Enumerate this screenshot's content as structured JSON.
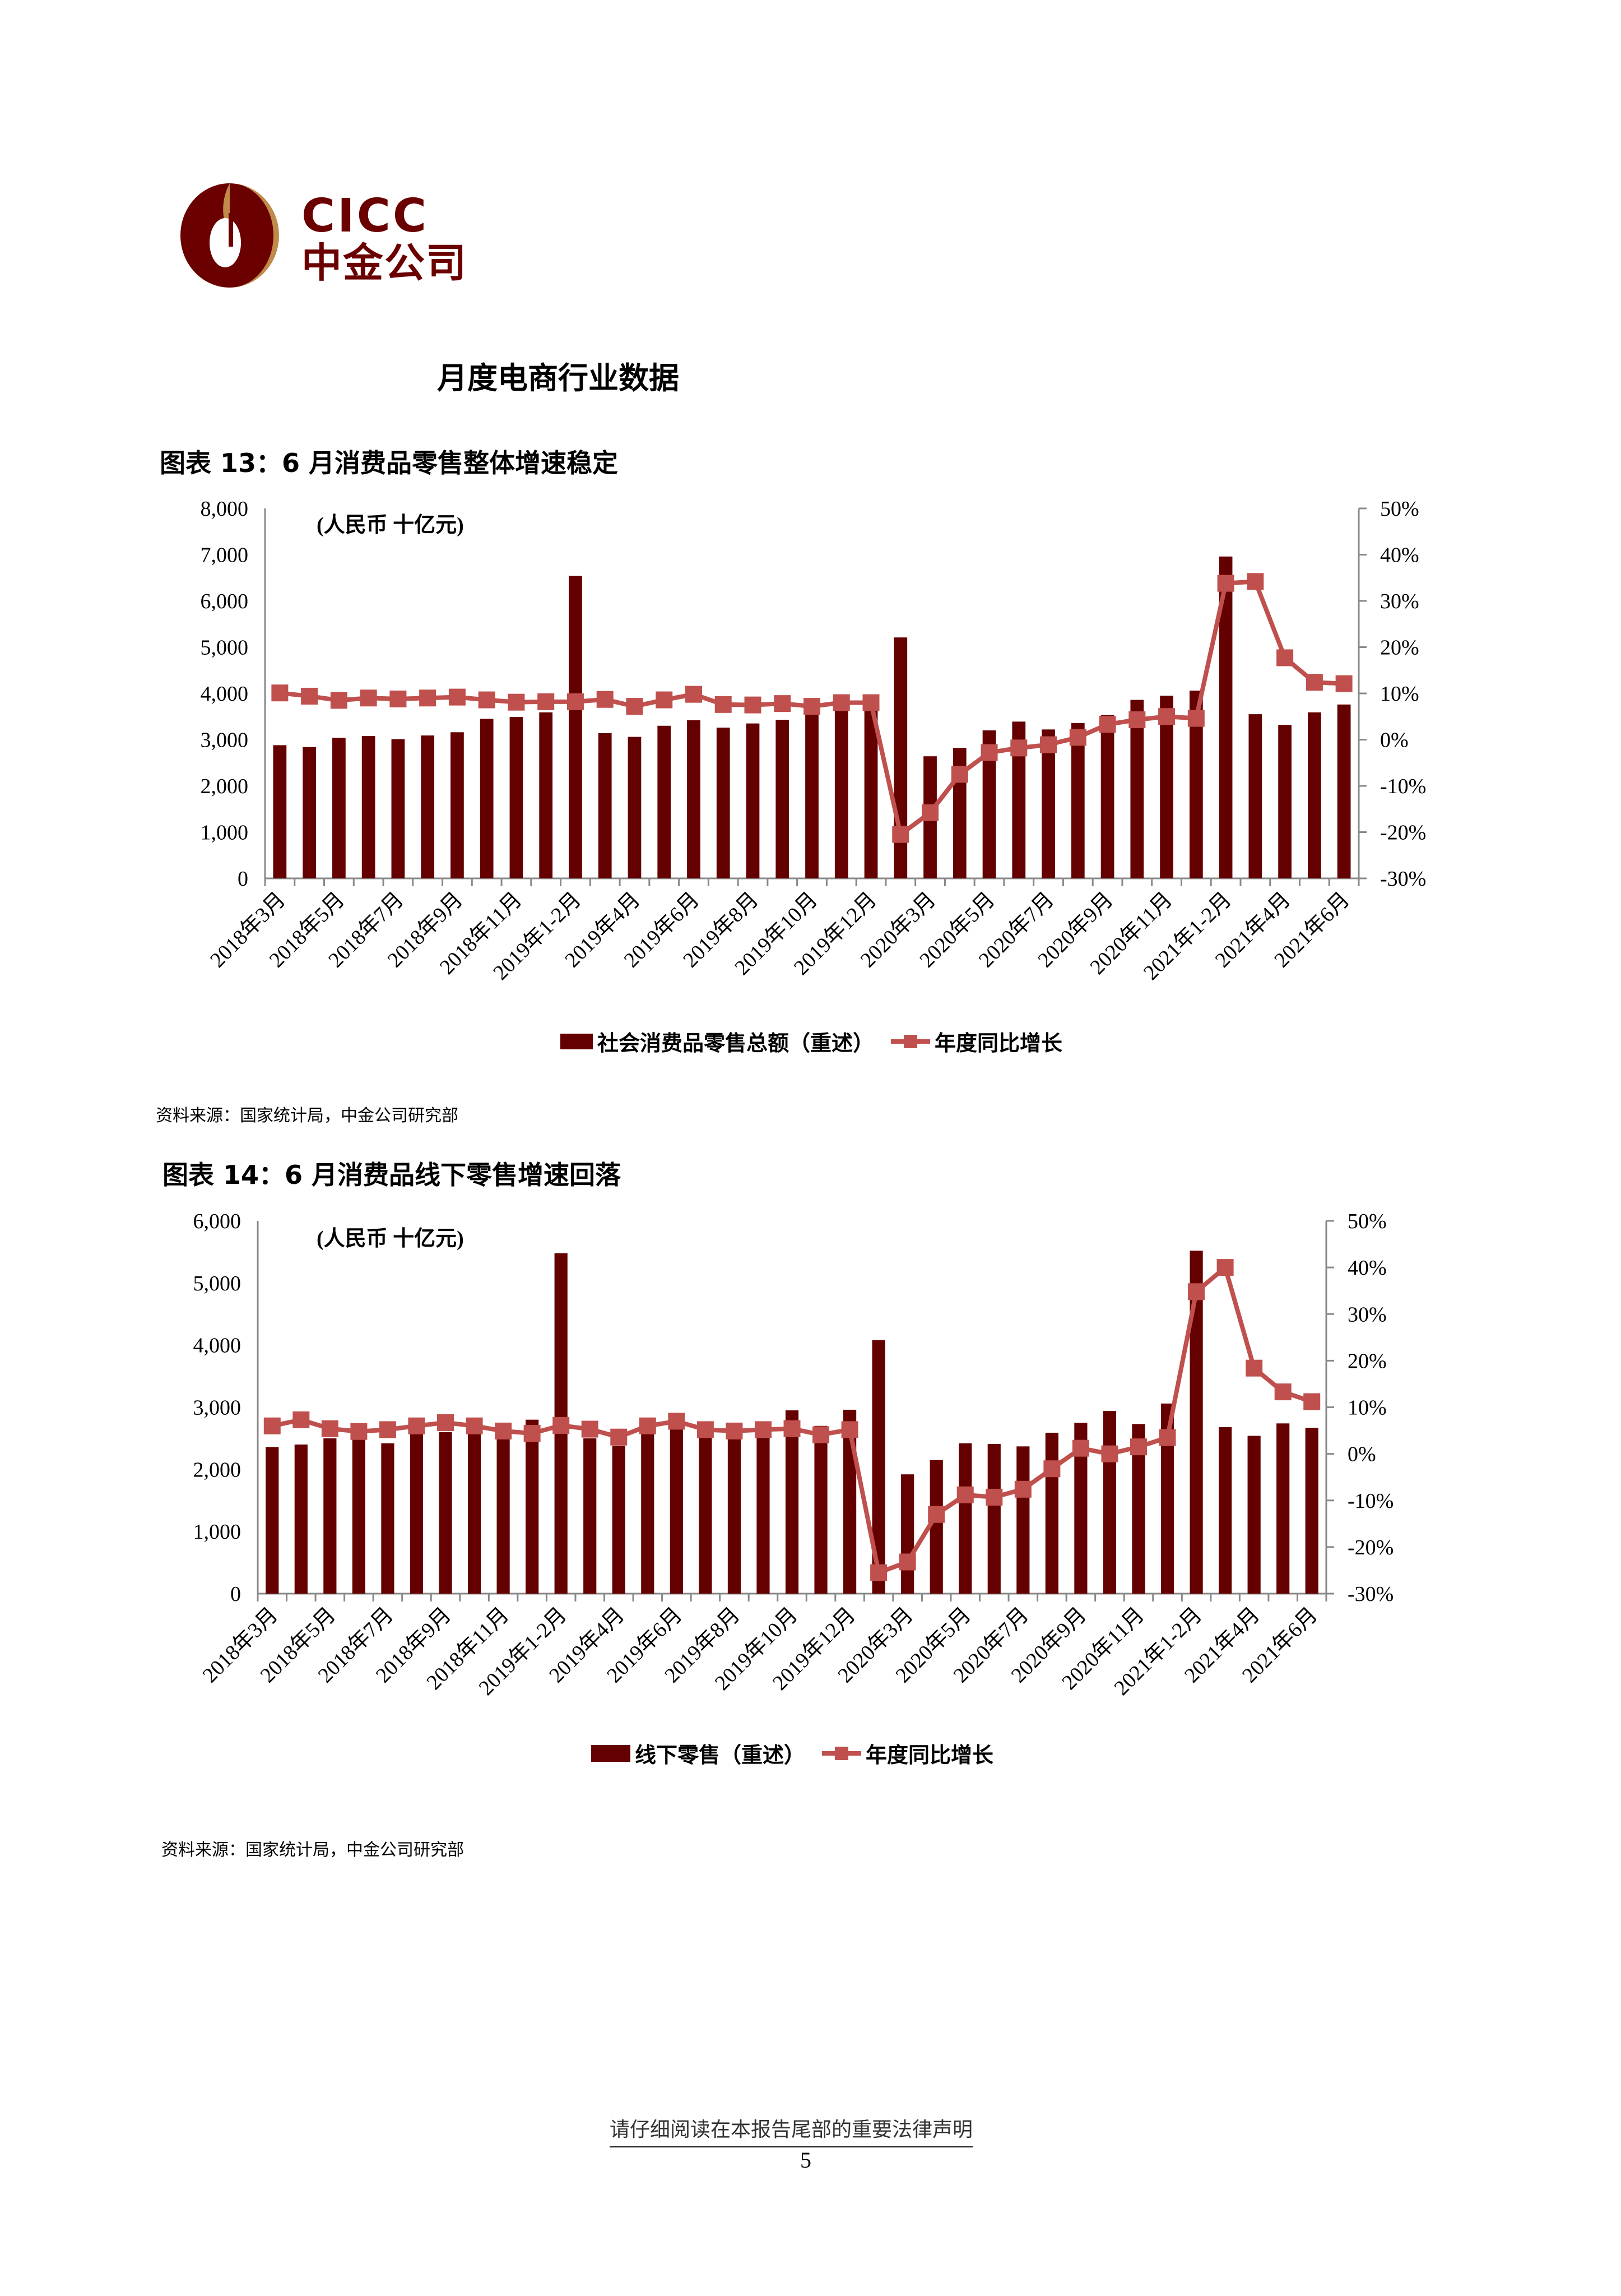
{
  "header": {
    "logo_en": "CICC",
    "logo_cn": "中金公司",
    "colors": {
      "brand_dark": "#6b0000",
      "brand_gold": "#c08a4a"
    }
  },
  "section_title": "月度电商行业数据",
  "figures": [
    {
      "title": "图表 13：6 月消费品零售整体增速稳定",
      "unit_note": "(人民币 十亿元)",
      "source": "资料来源：国家统计局，中金公司研究部",
      "legend": {
        "bar": "社会消费品零售总额（重述）",
        "line": "年度同比增长"
      }
    },
    {
      "title": "图表 14：6 月消费品线下零售增速回落",
      "unit_note": "(人民币 十亿元)",
      "source": "资料来源：国家统计局，中金公司研究部",
      "legend": {
        "bar": "线下零售（重述）",
        "line": "年度同比增长"
      }
    }
  ],
  "footer": {
    "disclaimer": "请仔细阅读在本报告尾部的重要法律声明",
    "page_number": "5"
  },
  "chart_data": [
    {
      "type": "bar+line",
      "title": "图表 13：6 月消费品零售整体增速稳定",
      "categories": [
        "2018年3月",
        "2018年4月",
        "2018年5月",
        "2018年6月",
        "2018年7月",
        "2018年8月",
        "2018年9月",
        "2018年10月",
        "2018年11月",
        "2018年12月",
        "2019年1-2月",
        "2019年3月",
        "2019年4月",
        "2019年5月",
        "2019年6月",
        "2019年7月",
        "2019年8月",
        "2019年9月",
        "2019年10月",
        "2019年11月",
        "2019年12月",
        "2020年1-2月",
        "2020年3月",
        "2020年4月",
        "2020年5月",
        "2020年6月",
        "2020年7月",
        "2020年8月",
        "2020年9月",
        "2020年10月",
        "2020年11月",
        "2020年12月",
        "2021年1-2月",
        "2021年3月",
        "2021年4月",
        "2021年5月",
        "2021年6月"
      ],
      "tick_labels": [
        "2018年3月",
        "2018年5月",
        "2018年7月",
        "2018年9月",
        "2018年11月",
        "2019年1-2月",
        "2019年4月",
        "2019年6月",
        "2019年8月",
        "2019年10月",
        "2019年12月",
        "2020年3月",
        "2020年5月",
        "2020年7月",
        "2020年9月",
        "2020年11月",
        "2021年1-2月",
        "2021年4月",
        "2021年6月"
      ],
      "series": [
        {
          "name": "社会消费品零售总额（重述）",
          "axis": "left",
          "type": "bar",
          "color": "#640000",
          "values": [
            2880,
            2840,
            3040,
            3080,
            3010,
            3090,
            3160,
            3450,
            3490,
            3590,
            6540,
            3140,
            3060,
            3300,
            3420,
            3260,
            3350,
            3430,
            3800,
            3810,
            3800,
            5210,
            2640,
            2820,
            3200,
            3390,
            3220,
            3360,
            3530,
            3860,
            3950,
            4060,
            6960,
            3550,
            3320,
            3590,
            3760
          ]
        },
        {
          "name": "年度同比增长",
          "axis": "right",
          "type": "line",
          "color": "#c0504d",
          "values": [
            10.1,
            9.4,
            8.5,
            9.0,
            8.8,
            9.0,
            9.2,
            8.6,
            8.1,
            8.2,
            8.2,
            8.7,
            7.2,
            8.6,
            9.8,
            7.6,
            7.5,
            7.8,
            7.2,
            8.0,
            8.0,
            -20.5,
            -15.8,
            -7.5,
            -2.8,
            -1.8,
            -1.1,
            0.5,
            3.3,
            4.3,
            5.0,
            4.6,
            33.8,
            34.2,
            17.7,
            12.4,
            12.1
          ]
        }
      ],
      "y_left": {
        "min": 0,
        "max": 8000,
        "ticks": [
          "0",
          "1,000",
          "2,000",
          "3,000",
          "4,000",
          "5,000",
          "6,000",
          "7,000",
          "8,000"
        ]
      },
      "y_right": {
        "min": -30,
        "max": 50,
        "ticks": [
          "-30%",
          "-20%",
          "-10%",
          "0%",
          "10%",
          "20%",
          "30%",
          "40%",
          "50%"
        ]
      },
      "grid": false,
      "legend_position": "bottom"
    },
    {
      "type": "bar+line",
      "title": "图表 14：6 月消费品线下零售增速回落",
      "categories": [
        "2018年3月",
        "2018年4月",
        "2018年5月",
        "2018年6月",
        "2018年7月",
        "2018年8月",
        "2018年9月",
        "2018年10月",
        "2018年11月",
        "2018年12月",
        "2019年1-2月",
        "2019年3月",
        "2019年4月",
        "2019年5月",
        "2019年6月",
        "2019年7月",
        "2019年8月",
        "2019年9月",
        "2019年10月",
        "2019年11月",
        "2019年12月",
        "2020年1-2月",
        "2020年3月",
        "2020年4月",
        "2020年5月",
        "2020年6月",
        "2020年7月",
        "2020年8月",
        "2020年9月",
        "2020年10月",
        "2020年11月",
        "2020年12月",
        "2021年1-2月",
        "2021年3月",
        "2021年4月",
        "2021年5月",
        "2021年6月"
      ],
      "tick_labels": [
        "2018年3月",
        "2018年5月",
        "2018年7月",
        "2018年9月",
        "2018年11月",
        "2019年1-2月",
        "2019年4月",
        "2019年6月",
        "2019年8月",
        "2019年10月",
        "2019年12月",
        "2020年3月",
        "2020年5月",
        "2020年7月",
        "2020年9月",
        "2020年11月",
        "2021年1-2月",
        "2021年4月",
        "2021年6月"
      ],
      "series": [
        {
          "name": "线下零售（重述）",
          "axis": "left",
          "type": "bar",
          "color": "#640000",
          "values": [
            2360,
            2400,
            2500,
            2580,
            2420,
            2580,
            2600,
            2670,
            2540,
            2800,
            5480,
            2500,
            2380,
            2640,
            2820,
            2600,
            2620,
            2680,
            2950,
            2700,
            2960,
            4080,
            1920,
            2150,
            2420,
            2410,
            2370,
            2590,
            2750,
            2940,
            2730,
            3060,
            5520,
            2680,
            2540,
            2740,
            2670
          ]
        },
        {
          "name": "年度同比增长",
          "axis": "right",
          "type": "line",
          "color": "#c0504d",
          "values": [
            6.0,
            7.3,
            5.4,
            4.8,
            5.2,
            6.0,
            6.7,
            6.0,
            4.9,
            4.4,
            6.1,
            5.3,
            3.6,
            6.0,
            7.0,
            5.2,
            4.9,
            5.2,
            5.4,
            4.1,
            5.2,
            -25.5,
            -23.2,
            -13.0,
            -8.8,
            -9.3,
            -7.6,
            -3.2,
            1.2,
            0.0,
            1.5,
            3.5,
            34.8,
            40.0,
            18.4,
            13.3,
            11.2
          ]
        }
      ],
      "y_left": {
        "min": 0,
        "max": 6000,
        "ticks": [
          "0",
          "1,000",
          "2,000",
          "3,000",
          "4,000",
          "5,000",
          "6,000"
        ]
      },
      "y_right": {
        "min": -30,
        "max": 50,
        "ticks": [
          "-30%",
          "-20%",
          "-10%",
          "0%",
          "10%",
          "20%",
          "30%",
          "40%",
          "50%"
        ]
      },
      "grid": false,
      "legend_position": "bottom"
    }
  ]
}
